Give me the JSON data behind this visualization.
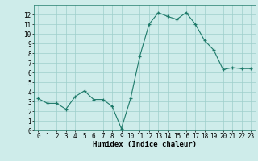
{
  "x": [
    0,
    1,
    2,
    3,
    4,
    5,
    6,
    7,
    8,
    9,
    10,
    11,
    12,
    13,
    14,
    15,
    16,
    17,
    18,
    19,
    20,
    21,
    22,
    23
  ],
  "y": [
    3.3,
    2.8,
    2.8,
    2.2,
    3.5,
    4.1,
    3.2,
    3.2,
    2.5,
    0.2,
    3.3,
    7.7,
    11.0,
    12.2,
    11.8,
    11.5,
    12.2,
    11.0,
    9.3,
    8.3,
    6.3,
    6.5,
    6.4,
    6.4
  ],
  "xlabel": "Humidex (Indice chaleur)",
  "ylim": [
    0,
    13
  ],
  "xlim": [
    -0.5,
    23.5
  ],
  "yticks": [
    0,
    1,
    2,
    3,
    4,
    5,
    6,
    7,
    8,
    9,
    10,
    11,
    12
  ],
  "xticks": [
    0,
    1,
    2,
    3,
    4,
    5,
    6,
    7,
    8,
    9,
    10,
    11,
    12,
    13,
    14,
    15,
    16,
    17,
    18,
    19,
    20,
    21,
    22,
    23
  ],
  "xtick_labels": [
    "0",
    "1",
    "2",
    "3",
    "4",
    "5",
    "6",
    "7",
    "8",
    "9",
    "10",
    "11",
    "12",
    "13",
    "14",
    "15",
    "16",
    "17",
    "18",
    "19",
    "20",
    "21",
    "22",
    "23"
  ],
  "line_color": "#1e7a6a",
  "marker_color": "#1e7a6a",
  "bg_color": "#ceecea",
  "grid_color": "#9ecfcb",
  "xlabel_fontsize": 6.5,
  "tick_fontsize": 5.5
}
